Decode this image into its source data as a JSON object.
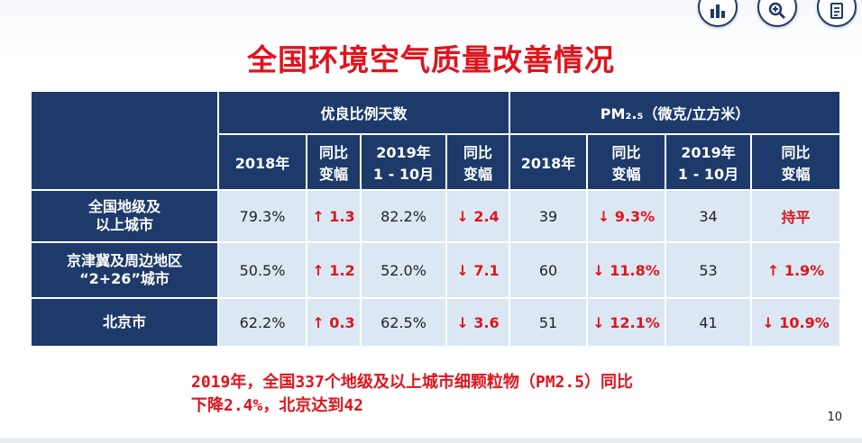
{
  "title": "全国环境空气质量改善情况",
  "table": {
    "group_headers": [
      "优良比例天数",
      "PM₂.₅（微克/立方米）"
    ],
    "sub_headers": [
      [
        "2018年"
      ],
      [
        "同比",
        "变幅"
      ],
      [
        "2019年",
        "1 - 10月"
      ],
      [
        "同比",
        "变幅"
      ],
      [
        "2018年"
      ],
      [
        "同比",
        "变幅"
      ],
      [
        "2019年",
        "1 - 10月"
      ],
      [
        "同比",
        "变幅"
      ]
    ],
    "rows": [
      {
        "region": [
          "全国地级及",
          "以上城市"
        ],
        "cells": [
          "79.3%",
          "↑ 1.3",
          "82.2%",
          "↓ 2.4",
          "39",
          "↓ 9.3%",
          "34",
          "持平"
        ]
      },
      {
        "region": [
          "京津冀及周边地区",
          "“2+26”城市"
        ],
        "cells": [
          "50.5%",
          "↑ 1.2",
          "52.0%",
          "↓ 7.1",
          "60",
          "↓ 11.8%",
          "53",
          "↑ 1.9%"
        ]
      },
      {
        "region": [
          "北京市"
        ],
        "cells": [
          "62.2%",
          "↑ 0.3",
          "62.5%",
          "↓ 3.6",
          "51",
          "↓ 12.1%",
          "41",
          "↓ 10.9%"
        ]
      }
    ]
  },
  "footnote": [
    "2019年，全国337个地级及以上城市细颗粒物（PM2.5）同比",
    "下降2.4%，北京达到42"
  ],
  "page_number": "10",
  "colors": {
    "title": "#e0141e",
    "header_bg": "#1d3a6a",
    "cell_bg": "#dbe8f3",
    "accent_red": "#e0141e"
  },
  "icons": [
    "bar-chart-icon",
    "zoom-icon",
    "document-icon"
  ]
}
